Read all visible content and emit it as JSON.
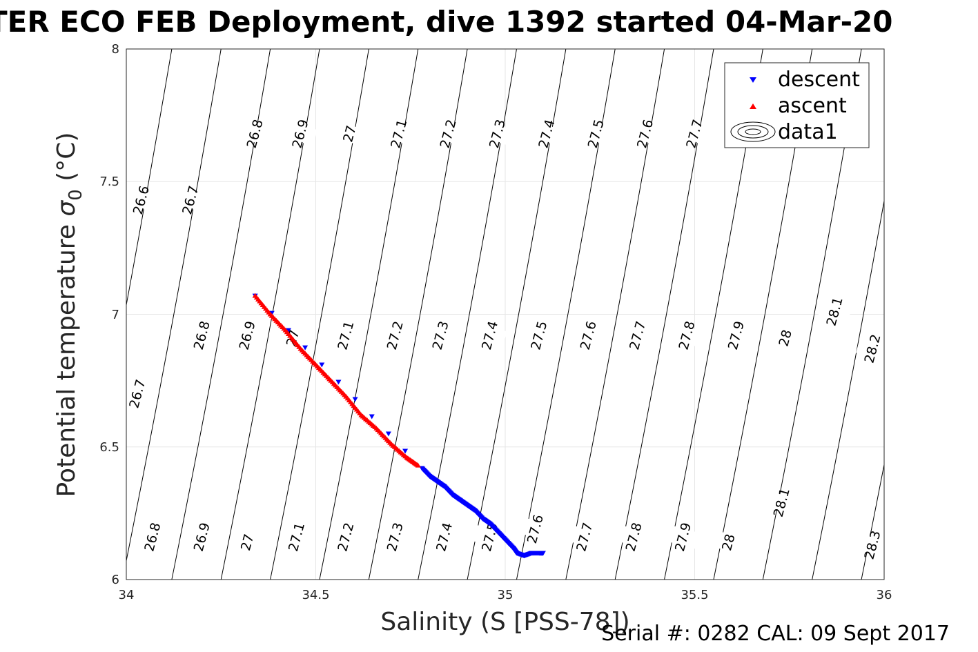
{
  "chart_data": {
    "type": "scatter",
    "title": "TER ECO FEB Deployment, dive 1392 started 04-Mar-20",
    "xlabel": "Salinity (S [PSS-78])",
    "ylabel_main": "Potential temperature ",
    "ylabel_sigma": "σ",
    "ylabel_sub": "0",
    "ylabel_unit": " (°C)",
    "xlim": [
      34,
      36
    ],
    "ylim": [
      6,
      8
    ],
    "xticks": [
      "34",
      "34.5",
      "35",
      "35.5",
      "36"
    ],
    "yticks": [
      "6",
      "6.5",
      "7",
      "7.5",
      "8"
    ],
    "grid": true,
    "legend_placement": "top-right",
    "legend": [
      "descent",
      "ascent",
      "data1"
    ],
    "footer": "Serial #: 0282  CAL: 09 Sept 2017",
    "series": [
      {
        "name": "descent",
        "color": "#0000ff",
        "marker": "triangle-down",
        "x": [
          34.34,
          34.78,
          34.8,
          34.82,
          34.84,
          34.86,
          34.88,
          34.9,
          34.92,
          34.94,
          34.96,
          34.98,
          35.0,
          35.02,
          35.03,
          35.05,
          35.07,
          35.09,
          35.1
        ],
        "y": [
          7.07,
          6.42,
          6.39,
          6.37,
          6.35,
          6.32,
          6.3,
          6.28,
          6.26,
          6.23,
          6.21,
          6.18,
          6.15,
          6.12,
          6.1,
          6.09,
          6.1,
          6.1,
          6.1
        ]
      },
      {
        "name": "ascent",
        "color": "#ff0000",
        "marker": "triangle-up",
        "x": [
          34.34,
          34.38,
          34.42,
          34.46,
          34.5,
          34.54,
          34.58,
          34.62,
          34.66,
          34.7,
          34.74,
          34.77
        ],
        "y": [
          7.07,
          7.0,
          6.94,
          6.87,
          6.81,
          6.75,
          6.69,
          6.62,
          6.57,
          6.51,
          6.46,
          6.43
        ]
      }
    ],
    "contour_labels": [
      {
        "text": "26.8",
        "x": 34.34,
        "y": 7.68
      },
      {
        "text": "26.9",
        "x": 34.46,
        "y": 7.68
      },
      {
        "text": "27",
        "x": 34.59,
        "y": 7.68
      },
      {
        "text": "27.1",
        "x": 34.72,
        "y": 7.68
      },
      {
        "text": "27.2",
        "x": 34.85,
        "y": 7.68
      },
      {
        "text": "27.3",
        "x": 34.98,
        "y": 7.68
      },
      {
        "text": "27.4",
        "x": 35.11,
        "y": 7.68
      },
      {
        "text": "27.5",
        "x": 35.24,
        "y": 7.68
      },
      {
        "text": "27.6",
        "x": 35.37,
        "y": 7.68
      },
      {
        "text": "27.7",
        "x": 35.5,
        "y": 7.68
      },
      {
        "text": "26.6",
        "x": 34.04,
        "y": 7.43
      },
      {
        "text": "26.7",
        "x": 34.17,
        "y": 7.43
      },
      {
        "text": "26.8",
        "x": 34.2,
        "y": 6.92
      },
      {
        "text": "26.9",
        "x": 34.32,
        "y": 6.92
      },
      {
        "text": "27",
        "x": 34.44,
        "y": 6.91
      },
      {
        "text": "27.1",
        "x": 34.58,
        "y": 6.92
      },
      {
        "text": "27.2",
        "x": 34.71,
        "y": 6.92
      },
      {
        "text": "27.3",
        "x": 34.83,
        "y": 6.92
      },
      {
        "text": "27.4",
        "x": 34.96,
        "y": 6.92
      },
      {
        "text": "27.5",
        "x": 35.09,
        "y": 6.92
      },
      {
        "text": "27.6",
        "x": 35.22,
        "y": 6.92
      },
      {
        "text": "27.7",
        "x": 35.35,
        "y": 6.92
      },
      {
        "text": "27.8",
        "x": 35.48,
        "y": 6.92
      },
      {
        "text": "27.9",
        "x": 35.61,
        "y": 6.92
      },
      {
        "text": "28",
        "x": 35.74,
        "y": 6.91
      },
      {
        "text": "28.1",
        "x": 35.87,
        "y": 7.01
      },
      {
        "text": "28.2",
        "x": 35.97,
        "y": 6.87
      },
      {
        "text": "26.7",
        "x": 34.03,
        "y": 6.7
      },
      {
        "text": "26.8",
        "x": 34.07,
        "y": 6.16
      },
      {
        "text": "26.9",
        "x": 34.2,
        "y": 6.16
      },
      {
        "text": "27",
        "x": 34.32,
        "y": 6.14
      },
      {
        "text": "27.1",
        "x": 34.45,
        "y": 6.16
      },
      {
        "text": "27.2",
        "x": 34.58,
        "y": 6.16
      },
      {
        "text": "27.3",
        "x": 34.71,
        "y": 6.16
      },
      {
        "text": "27.4",
        "x": 34.84,
        "y": 6.16
      },
      {
        "text": "27.5",
        "x": 34.96,
        "y": 6.16
      },
      {
        "text": "27.6",
        "x": 35.08,
        "y": 6.19
      },
      {
        "text": "27.7",
        "x": 35.21,
        "y": 6.16
      },
      {
        "text": "27.8",
        "x": 35.34,
        "y": 6.16
      },
      {
        "text": "27.9",
        "x": 35.47,
        "y": 6.16
      },
      {
        "text": "28",
        "x": 35.59,
        "y": 6.14
      },
      {
        "text": "28.1",
        "x": 35.73,
        "y": 6.29
      },
      {
        "text": "28.3",
        "x": 35.97,
        "y": 6.13
      }
    ]
  }
}
